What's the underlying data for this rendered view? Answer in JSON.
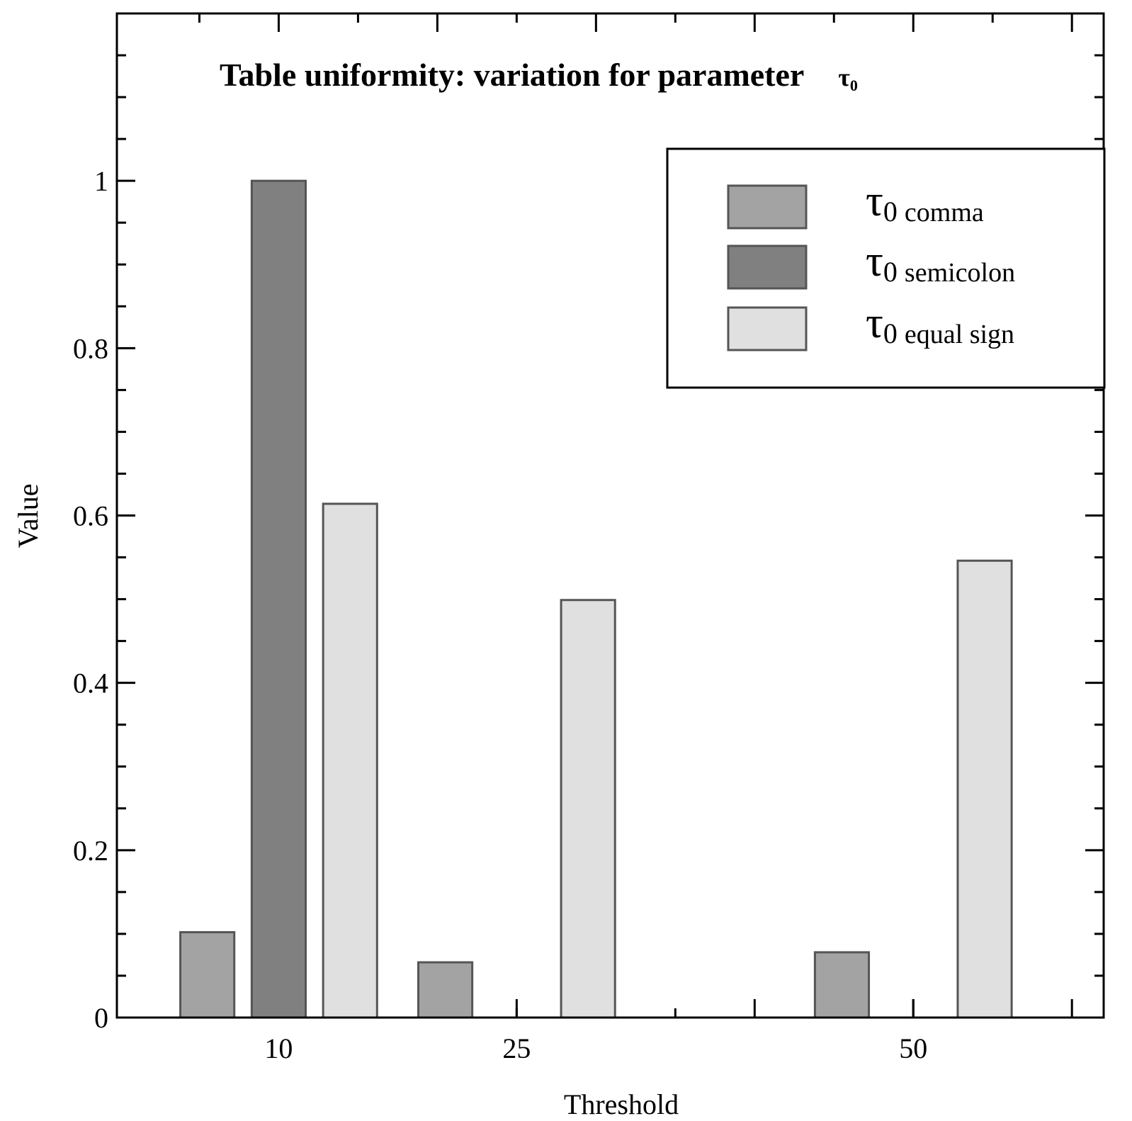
{
  "chart_data": {
    "type": "bar",
    "title_main": "Table uniformity: variation for parameter",
    "title_symbol": "τ",
    "title_subscript": "0",
    "xlabel": "Threshold",
    "ylabel": "Value",
    "categories": [
      "10",
      "25",
      "50"
    ],
    "x_positions": [
      10,
      25,
      50
    ],
    "xlim": [
      -0.2,
      62
    ],
    "ylim": [
      0,
      1.2
    ],
    "yticks": [
      0,
      0.2,
      0.4,
      0.6,
      0.8,
      1
    ],
    "ytick_labels": [
      "0",
      "0.2",
      "0.4",
      "0.6",
      "0.8",
      "1"
    ],
    "series": [
      {
        "name": "comma",
        "values": [
          0.102,
          0.066,
          0.078
        ],
        "color": "#a3a3a3"
      },
      {
        "name": "semicolon",
        "values": [
          1.0,
          0.0,
          0.0
        ],
        "color": "#808080"
      },
      {
        "name": "equal sign",
        "values": [
          0.614,
          0.499,
          0.546
        ],
        "color": "#e0e0e0"
      }
    ],
    "legend": {
      "position": "top-right",
      "symbol": "τ",
      "subscript_prefix": "0",
      "entries": [
        "comma",
        "semicolon",
        "equal sign"
      ]
    },
    "grid": false
  }
}
